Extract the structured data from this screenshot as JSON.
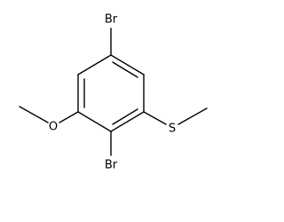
{
  "atoms": [
    {
      "label": "Br"
    },
    {
      "label": "Br"
    },
    {
      "label": "O"
    },
    {
      "label": "S"
    }
  ]
}
